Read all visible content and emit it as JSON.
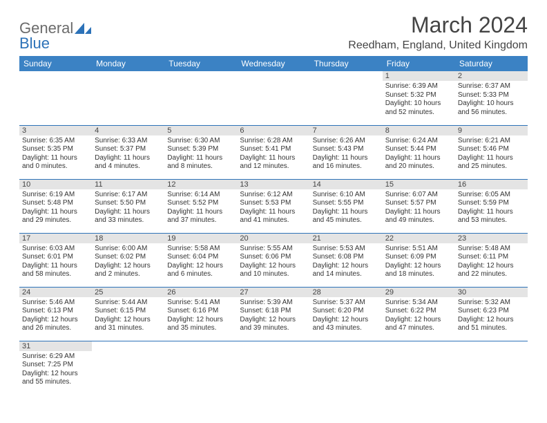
{
  "logo": {
    "part1": "General",
    "part2": "Blue"
  },
  "title": "March 2024",
  "location": "Reedham, England, United Kingdom",
  "weekday_header_bg": "#3b82c4",
  "cell_border_color": "#2c72b8",
  "daynum_bg": "#e4e4e4",
  "weekdays": [
    "Sunday",
    "Monday",
    "Tuesday",
    "Wednesday",
    "Thursday",
    "Friday",
    "Saturday"
  ],
  "weeks": [
    [
      null,
      null,
      null,
      null,
      null,
      {
        "n": "1",
        "sr": "Sunrise: 6:39 AM",
        "ss": "Sunset: 5:32 PM",
        "d1": "Daylight: 10 hours",
        "d2": "and 52 minutes."
      },
      {
        "n": "2",
        "sr": "Sunrise: 6:37 AM",
        "ss": "Sunset: 5:33 PM",
        "d1": "Daylight: 10 hours",
        "d2": "and 56 minutes."
      }
    ],
    [
      {
        "n": "3",
        "sr": "Sunrise: 6:35 AM",
        "ss": "Sunset: 5:35 PM",
        "d1": "Daylight: 11 hours",
        "d2": "and 0 minutes."
      },
      {
        "n": "4",
        "sr": "Sunrise: 6:33 AM",
        "ss": "Sunset: 5:37 PM",
        "d1": "Daylight: 11 hours",
        "d2": "and 4 minutes."
      },
      {
        "n": "5",
        "sr": "Sunrise: 6:30 AM",
        "ss": "Sunset: 5:39 PM",
        "d1": "Daylight: 11 hours",
        "d2": "and 8 minutes."
      },
      {
        "n": "6",
        "sr": "Sunrise: 6:28 AM",
        "ss": "Sunset: 5:41 PM",
        "d1": "Daylight: 11 hours",
        "d2": "and 12 minutes."
      },
      {
        "n": "7",
        "sr": "Sunrise: 6:26 AM",
        "ss": "Sunset: 5:43 PM",
        "d1": "Daylight: 11 hours",
        "d2": "and 16 minutes."
      },
      {
        "n": "8",
        "sr": "Sunrise: 6:24 AM",
        "ss": "Sunset: 5:44 PM",
        "d1": "Daylight: 11 hours",
        "d2": "and 20 minutes."
      },
      {
        "n": "9",
        "sr": "Sunrise: 6:21 AM",
        "ss": "Sunset: 5:46 PM",
        "d1": "Daylight: 11 hours",
        "d2": "and 25 minutes."
      }
    ],
    [
      {
        "n": "10",
        "sr": "Sunrise: 6:19 AM",
        "ss": "Sunset: 5:48 PM",
        "d1": "Daylight: 11 hours",
        "d2": "and 29 minutes."
      },
      {
        "n": "11",
        "sr": "Sunrise: 6:17 AM",
        "ss": "Sunset: 5:50 PM",
        "d1": "Daylight: 11 hours",
        "d2": "and 33 minutes."
      },
      {
        "n": "12",
        "sr": "Sunrise: 6:14 AM",
        "ss": "Sunset: 5:52 PM",
        "d1": "Daylight: 11 hours",
        "d2": "and 37 minutes."
      },
      {
        "n": "13",
        "sr": "Sunrise: 6:12 AM",
        "ss": "Sunset: 5:53 PM",
        "d1": "Daylight: 11 hours",
        "d2": "and 41 minutes."
      },
      {
        "n": "14",
        "sr": "Sunrise: 6:10 AM",
        "ss": "Sunset: 5:55 PM",
        "d1": "Daylight: 11 hours",
        "d2": "and 45 minutes."
      },
      {
        "n": "15",
        "sr": "Sunrise: 6:07 AM",
        "ss": "Sunset: 5:57 PM",
        "d1": "Daylight: 11 hours",
        "d2": "and 49 minutes."
      },
      {
        "n": "16",
        "sr": "Sunrise: 6:05 AM",
        "ss": "Sunset: 5:59 PM",
        "d1": "Daylight: 11 hours",
        "d2": "and 53 minutes."
      }
    ],
    [
      {
        "n": "17",
        "sr": "Sunrise: 6:03 AM",
        "ss": "Sunset: 6:01 PM",
        "d1": "Daylight: 11 hours",
        "d2": "and 58 minutes."
      },
      {
        "n": "18",
        "sr": "Sunrise: 6:00 AM",
        "ss": "Sunset: 6:02 PM",
        "d1": "Daylight: 12 hours",
        "d2": "and 2 minutes."
      },
      {
        "n": "19",
        "sr": "Sunrise: 5:58 AM",
        "ss": "Sunset: 6:04 PM",
        "d1": "Daylight: 12 hours",
        "d2": "and 6 minutes."
      },
      {
        "n": "20",
        "sr": "Sunrise: 5:55 AM",
        "ss": "Sunset: 6:06 PM",
        "d1": "Daylight: 12 hours",
        "d2": "and 10 minutes."
      },
      {
        "n": "21",
        "sr": "Sunrise: 5:53 AM",
        "ss": "Sunset: 6:08 PM",
        "d1": "Daylight: 12 hours",
        "d2": "and 14 minutes."
      },
      {
        "n": "22",
        "sr": "Sunrise: 5:51 AM",
        "ss": "Sunset: 6:09 PM",
        "d1": "Daylight: 12 hours",
        "d2": "and 18 minutes."
      },
      {
        "n": "23",
        "sr": "Sunrise: 5:48 AM",
        "ss": "Sunset: 6:11 PM",
        "d1": "Daylight: 12 hours",
        "d2": "and 22 minutes."
      }
    ],
    [
      {
        "n": "24",
        "sr": "Sunrise: 5:46 AM",
        "ss": "Sunset: 6:13 PM",
        "d1": "Daylight: 12 hours",
        "d2": "and 26 minutes."
      },
      {
        "n": "25",
        "sr": "Sunrise: 5:44 AM",
        "ss": "Sunset: 6:15 PM",
        "d1": "Daylight: 12 hours",
        "d2": "and 31 minutes."
      },
      {
        "n": "26",
        "sr": "Sunrise: 5:41 AM",
        "ss": "Sunset: 6:16 PM",
        "d1": "Daylight: 12 hours",
        "d2": "and 35 minutes."
      },
      {
        "n": "27",
        "sr": "Sunrise: 5:39 AM",
        "ss": "Sunset: 6:18 PM",
        "d1": "Daylight: 12 hours",
        "d2": "and 39 minutes."
      },
      {
        "n": "28",
        "sr": "Sunrise: 5:37 AM",
        "ss": "Sunset: 6:20 PM",
        "d1": "Daylight: 12 hours",
        "d2": "and 43 minutes."
      },
      {
        "n": "29",
        "sr": "Sunrise: 5:34 AM",
        "ss": "Sunset: 6:22 PM",
        "d1": "Daylight: 12 hours",
        "d2": "and 47 minutes."
      },
      {
        "n": "30",
        "sr": "Sunrise: 5:32 AM",
        "ss": "Sunset: 6:23 PM",
        "d1": "Daylight: 12 hours",
        "d2": "and 51 minutes."
      }
    ],
    [
      {
        "n": "31",
        "sr": "Sunrise: 6:29 AM",
        "ss": "Sunset: 7:25 PM",
        "d1": "Daylight: 12 hours",
        "d2": "and 55 minutes."
      },
      null,
      null,
      null,
      null,
      null,
      null
    ]
  ]
}
